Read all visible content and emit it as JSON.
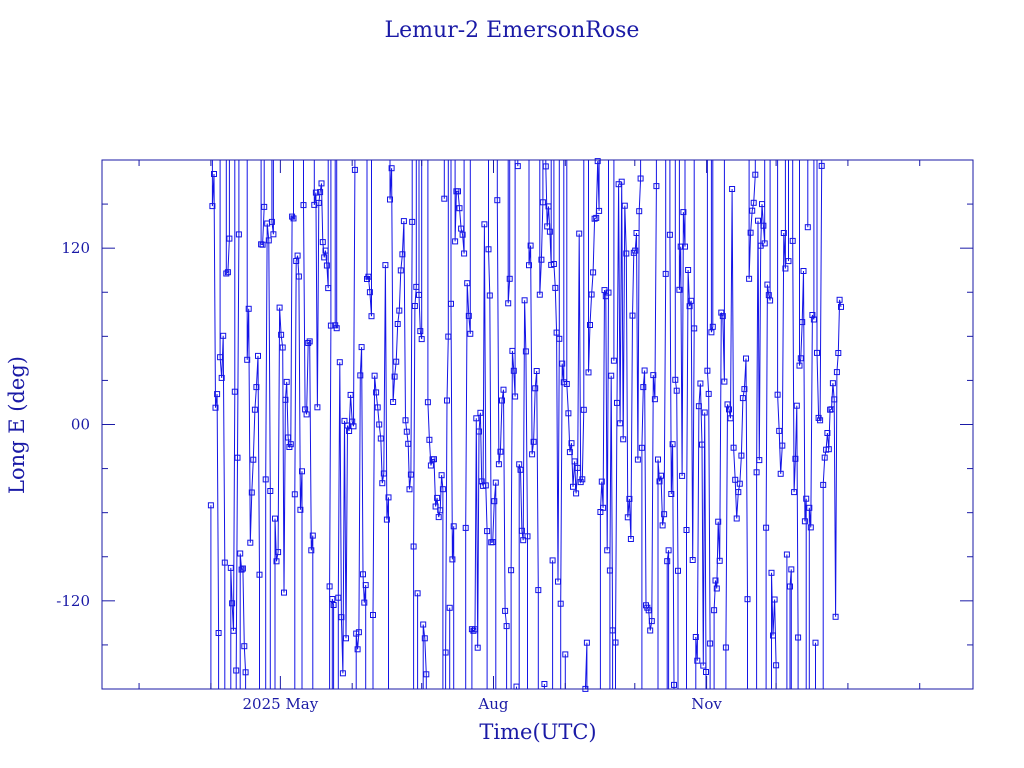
{
  "chart_data": {
    "type": "line",
    "title": "Lemur-2 EmersonRose",
    "xlabel": "Time(UTC)",
    "ylabel": "Long E (deg)",
    "ylim": [
      -180,
      180
    ],
    "xlim": [
      "2025-02-13",
      "2026-02-24"
    ],
    "y_ticks": [
      {
        "value": 120,
        "label": "120"
      },
      {
        "value": 0,
        "label": "00"
      },
      {
        "value": -120,
        "label": "-120"
      }
    ],
    "x_ticks": [
      {
        "date": "2025-05-01",
        "label": "2025 May"
      },
      {
        "date": "2025-08-01",
        "label": "Aug"
      },
      {
        "date": "2025-11-01",
        "label": "Nov"
      }
    ],
    "grid": false,
    "line_color": "#1414e6",
    "axis_color": "#1a1aa6",
    "marker": "square",
    "series": [
      {
        "x": [
          "2025-04-01",
          "2025-04-09",
          "2025-04-16",
          "2025-04-24",
          "2025-05-02",
          "2025-05-09",
          "2025-05-17",
          "2025-05-24",
          "2025-06-01",
          "2025-06-08",
          "2025-06-16",
          "2025-06-24",
          "2025-07-01",
          "2025-07-09",
          "2025-07-16",
          "2025-07-24",
          "2025-07-31",
          "2025-08-08",
          "2025-08-15",
          "2025-08-23",
          "2025-08-30",
          "2025-09-07",
          "2025-09-15",
          "2025-09-22",
          "2025-09-30",
          "2025-10-07",
          "2025-10-15",
          "2025-10-22",
          "2025-10-30",
          "2025-11-06",
          "2025-11-14",
          "2025-11-22",
          "2025-11-29",
          "2025-12-07",
          "2025-12-14",
          "2025-12-22",
          "2025-12-29"
        ],
        "y": [
          -35,
          110,
          -160,
          165,
          63,
          -95,
          175,
          60,
          -5,
          90,
          -80,
          170,
          50,
          -70,
          160,
          35,
          -95,
          85,
          -115,
          172,
          40,
          -55,
          160,
          30,
          -90,
          70,
          -110,
          150,
          0,
          95,
          -60,
          175,
          70,
          -100,
          140,
          -40,
          80
        ]
      }
    ]
  }
}
